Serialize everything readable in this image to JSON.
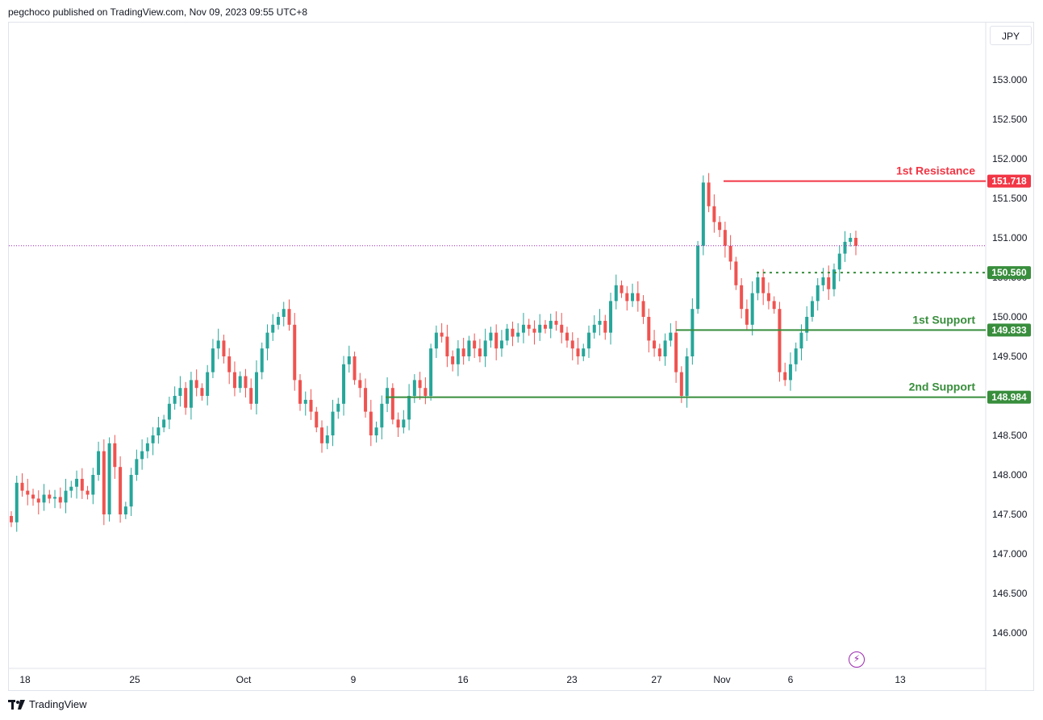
{
  "header": {
    "published": "pegchoco published on TradingView.com, Nov 09, 2023 09:55 UTC+8"
  },
  "footer": {
    "brand": "TradingView",
    "logo_icon": "tradingview-logo-icon"
  },
  "currency": "JPY",
  "colors": {
    "up": "#26a69a",
    "down": "#ef5350",
    "resistance": "#f23645",
    "support": "#388e3c",
    "grid": "#e0e3eb",
    "last_price": "#9c27b0"
  },
  "chart_data": {
    "type": "candlestick",
    "y_ticks": [
      "153.000",
      "152.500",
      "152.000",
      "151.500",
      "151.000",
      "150.500",
      "150.000",
      "149.500",
      "149.000",
      "148.500",
      "148.000",
      "147.500",
      "147.000",
      "146.500",
      "146.000"
    ],
    "x_ticks": [
      "18",
      "25",
      "Oct",
      "9",
      "16",
      "23",
      "27",
      "Nov",
      "6",
      "13"
    ],
    "ylim": [
      145.6,
      153.6
    ],
    "last_price": 150.9,
    "levels": [
      {
        "label": "1st Resistance",
        "value": 151.718,
        "value_label": "151.718",
        "style": "solid",
        "color": "#f23645"
      },
      {
        "label": "",
        "value": 150.56,
        "value_label": "150.560",
        "style": "dotted",
        "color": "#388e3c"
      },
      {
        "label": "1st Support",
        "value": 149.833,
        "value_label": "149.833",
        "style": "solid",
        "color": "#388e3c"
      },
      {
        "label": "2nd Support",
        "value": 148.984,
        "value_label": "148.984",
        "style": "solid",
        "color": "#388e3c"
      }
    ],
    "closes": [
      147.4,
      147.9,
      147.8,
      147.75,
      147.7,
      147.65,
      147.75,
      147.7,
      147.72,
      147.65,
      147.8,
      147.85,
      147.95,
      147.8,
      147.75,
      148.0,
      148.3,
      147.5,
      148.4,
      148.1,
      147.5,
      147.6,
      148.0,
      148.2,
      148.3,
      148.4,
      148.5,
      148.6,
      148.7,
      148.9,
      149.0,
      149.1,
      148.85,
      149.2,
      149.1,
      149.0,
      149.3,
      149.6,
      149.7,
      149.5,
      149.3,
      149.1,
      149.25,
      149.1,
      148.9,
      149.3,
      149.6,
      149.8,
      149.9,
      150.0,
      150.1,
      149.9,
      149.2,
      148.9,
      148.95,
      148.8,
      148.6,
      148.4,
      148.5,
      148.8,
      148.9,
      149.4,
      149.5,
      149.2,
      149.1,
      148.8,
      148.5,
      148.6,
      148.9,
      149.1,
      148.7,
      148.6,
      148.7,
      149.0,
      149.2,
      149.1,
      149.0,
      149.6,
      149.8,
      149.75,
      149.5,
      149.4,
      149.6,
      149.5,
      149.7,
      149.6,
      149.5,
      149.7,
      149.8,
      149.6,
      149.7,
      149.85,
      149.75,
      149.8,
      149.9,
      149.85,
      149.8,
      149.9,
      149.85,
      149.95,
      149.9,
      149.8,
      149.7,
      149.6,
      149.5,
      149.6,
      149.8,
      149.9,
      149.95,
      149.8,
      150.2,
      150.4,
      150.3,
      150.2,
      150.3,
      150.2,
      150.0,
      149.7,
      149.6,
      149.5,
      149.7,
      149.8,
      149.3,
      149.0,
      149.5,
      150.1,
      150.9,
      151.7,
      151.4,
      151.2,
      151.1,
      150.9,
      150.7,
      150.4,
      150.1,
      149.9,
      150.3,
      150.5,
      150.3,
      150.2,
      150.1,
      149.3,
      149.2,
      149.4,
      149.6,
      149.8,
      150.0,
      150.2,
      150.4,
      150.5,
      150.35,
      150.6,
      150.8,
      150.95,
      151.0,
      150.9
    ]
  }
}
